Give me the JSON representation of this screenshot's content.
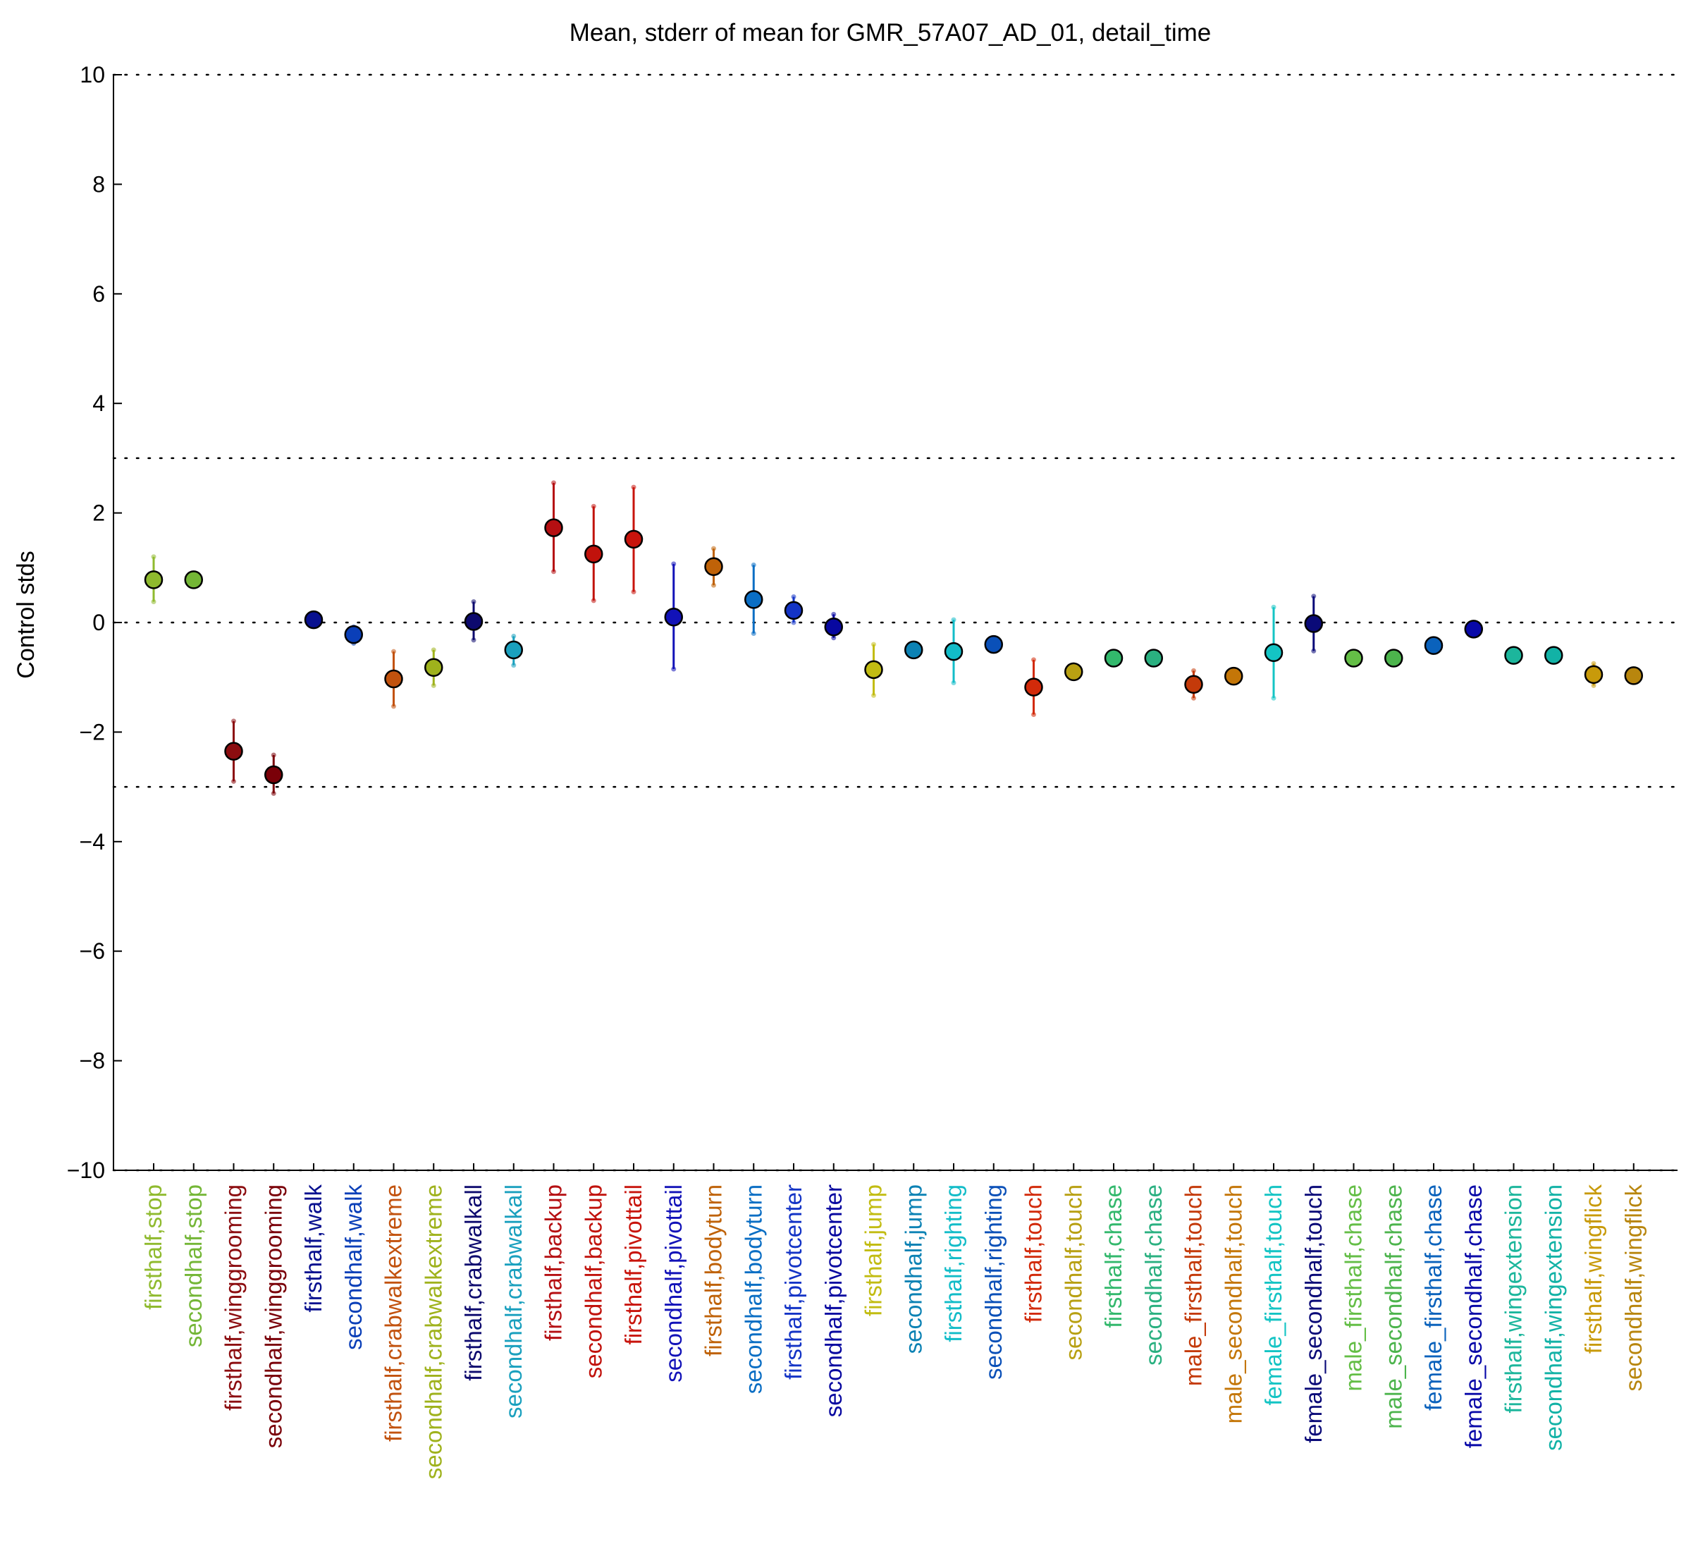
{
  "chart_data": {
    "type": "scatter",
    "title": "Mean, stderr of mean for GMR_57A07_AD_01, detail_time",
    "ylabel": "Control stds",
    "xlabel": "",
    "ylim": [
      -10,
      10
    ],
    "yticks": [
      -10,
      -8,
      -6,
      -4,
      -2,
      0,
      2,
      4,
      6,
      8,
      10
    ],
    "ytick_labels": [
      "−10",
      "−8",
      "−6",
      "−4",
      "−2",
      "0",
      "2",
      "4",
      "6",
      "8",
      "10"
    ],
    "reference_lines": [
      10,
      3,
      0,
      -3,
      -10
    ],
    "grid": false,
    "legend": "none",
    "points": [
      {
        "label": "firsthalf,stop",
        "mean": 0.78,
        "lo": 0.38,
        "hi": 1.2,
        "color": "#8fba2e"
      },
      {
        "label": "secondhalf,stop",
        "mean": 0.78,
        "lo": 0.72,
        "hi": 0.84,
        "color": "#74b636"
      },
      {
        "label": "firsthalf,winggrooming",
        "mean": -2.35,
        "lo": -2.9,
        "hi": -1.8,
        "color": "#8c0d10"
      },
      {
        "label": "secondhalf,winggrooming",
        "mean": -2.78,
        "lo": -3.12,
        "hi": -2.42,
        "color": "#7a0008"
      },
      {
        "label": "firsthalf,walk",
        "mean": 0.05,
        "lo": -0.02,
        "hi": 0.12,
        "color": "#08108f"
      },
      {
        "label": "secondhalf,walk",
        "mean": -0.22,
        "lo": -0.38,
        "hi": -0.08,
        "color": "#0a3fb8"
      },
      {
        "label": "firsthalf,crabwalkextreme",
        "mean": -1.03,
        "lo": -1.53,
        "hi": -0.53,
        "color": "#c2520e"
      },
      {
        "label": "secondhalf,crabwalkextreme",
        "mean": -0.82,
        "lo": -1.15,
        "hi": -0.5,
        "color": "#9fb21c"
      },
      {
        "label": "firsthalf,crabwalkall",
        "mean": 0.02,
        "lo": -0.32,
        "hi": 0.38,
        "color": "#0d0a6e"
      },
      {
        "label": "secondhalf,crabwalkall",
        "mean": -0.5,
        "lo": -0.78,
        "hi": -0.25,
        "color": "#1aa0be"
      },
      {
        "label": "firsthalf,backup",
        "mean": 1.73,
        "lo": 0.93,
        "hi": 2.55,
        "color": "#b50f12"
      },
      {
        "label": "secondhalf,backup",
        "mean": 1.25,
        "lo": 0.4,
        "hi": 2.12,
        "color": "#c1120c"
      },
      {
        "label": "firsthalf,pivottail",
        "mean": 1.52,
        "lo": 0.56,
        "hi": 2.47,
        "color": "#c8140c"
      },
      {
        "label": "secondhalf,pivottail",
        "mean": 0.1,
        "lo": -0.85,
        "hi": 1.07,
        "color": "#1212b8"
      },
      {
        "label": "firsthalf,bodyturn",
        "mean": 1.02,
        "lo": 0.68,
        "hi": 1.35,
        "color": "#bf6208"
      },
      {
        "label": "secondhalf,bodyturn",
        "mean": 0.42,
        "lo": -0.2,
        "hi": 1.05,
        "color": "#0a6ec4"
      },
      {
        "label": "firsthalf,pivotcenter",
        "mean": 0.22,
        "lo": 0.0,
        "hi": 0.47,
        "color": "#1434c6"
      },
      {
        "label": "secondhalf,pivotcenter",
        "mean": -0.08,
        "lo": -0.28,
        "hi": 0.15,
        "color": "#0808a0"
      },
      {
        "label": "firsthalf,jump",
        "mean": -0.86,
        "lo": -1.33,
        "hi": -0.4,
        "color": "#c2bc12"
      },
      {
        "label": "secondhalf,jump",
        "mean": -0.5,
        "lo": -0.56,
        "hi": -0.44,
        "color": "#0c82b4"
      },
      {
        "label": "firsthalf,righting",
        "mean": -0.53,
        "lo": -1.1,
        "hi": 0.05,
        "color": "#12bcc8"
      },
      {
        "label": "secondhalf,righting",
        "mean": -0.4,
        "lo": -0.46,
        "hi": -0.34,
        "color": "#0a50b8"
      },
      {
        "label": "firsthalf,touch",
        "mean": -1.18,
        "lo": -1.68,
        "hi": -0.68,
        "color": "#d22a0a"
      },
      {
        "label": "secondhalf,touch",
        "mean": -0.9,
        "lo": -0.96,
        "hi": -0.84,
        "color": "#b8a012"
      },
      {
        "label": "firsthalf,chase",
        "mean": -0.65,
        "lo": -0.7,
        "hi": -0.6,
        "color": "#32b86c"
      },
      {
        "label": "secondhalf,chase",
        "mean": -0.65,
        "lo": -0.7,
        "hi": -0.6,
        "color": "#2ab080"
      },
      {
        "label": "male_firsthalf,touch",
        "mean": -1.13,
        "lo": -1.38,
        "hi": -0.88,
        "color": "#c43a0a"
      },
      {
        "label": "male_secondhalf,touch",
        "mean": -0.98,
        "lo": -1.04,
        "hi": -0.92,
        "color": "#c47608"
      },
      {
        "label": "female_firsthalf,touch",
        "mean": -0.55,
        "lo": -1.38,
        "hi": 0.28,
        "color": "#14c4c4"
      },
      {
        "label": "female_secondhalf,touch",
        "mean": -0.02,
        "lo": -0.52,
        "hi": 0.48,
        "color": "#0a0a78"
      },
      {
        "label": "male_firsthalf,chase",
        "mean": -0.65,
        "lo": -0.7,
        "hi": -0.6,
        "color": "#64be46"
      },
      {
        "label": "male_secondhalf,chase",
        "mean": -0.65,
        "lo": -0.7,
        "hi": -0.6,
        "color": "#4cb44c"
      },
      {
        "label": "female_firsthalf,chase",
        "mean": -0.42,
        "lo": -0.48,
        "hi": -0.36,
        "color": "#0a62bc"
      },
      {
        "label": "female_secondhalf,chase",
        "mean": -0.12,
        "lo": -0.18,
        "hi": -0.06,
        "color": "#0808a8"
      },
      {
        "label": "firsthalf,wingextension",
        "mean": -0.6,
        "lo": -0.66,
        "hi": -0.54,
        "color": "#1cb69c"
      },
      {
        "label": "secondhalf,wingextension",
        "mean": -0.6,
        "lo": -0.66,
        "hi": -0.54,
        "color": "#12b2a6"
      },
      {
        "label": "firsthalf,wingflick",
        "mean": -0.95,
        "lo": -1.15,
        "hi": -0.75,
        "color": "#c89a0a"
      },
      {
        "label": "secondhalf,wingflick",
        "mean": -0.97,
        "lo": -1.03,
        "hi": -0.91,
        "color": "#b8860e"
      }
    ]
  }
}
